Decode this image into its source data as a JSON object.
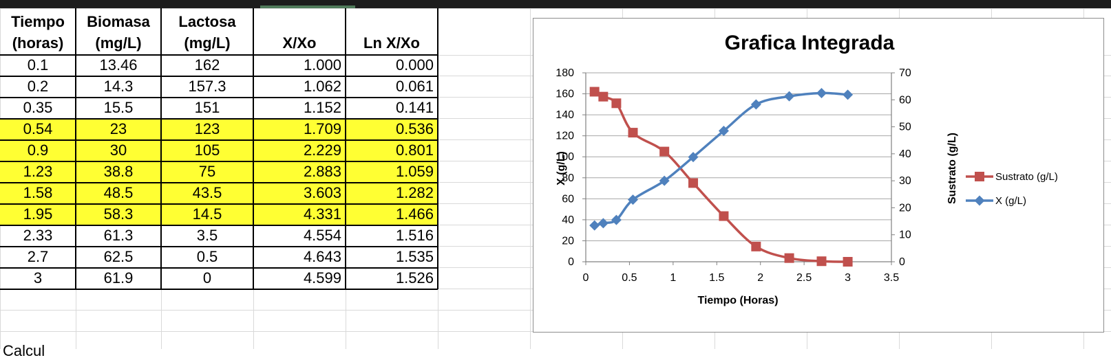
{
  "spreadsheet": {
    "headers": [
      [
        "Tiempo",
        "(horas)"
      ],
      [
        "Biomasa",
        "(mg/L)"
      ],
      [
        "Lactosa",
        "(mg/L)"
      ],
      [
        "X/Xo"
      ],
      [
        "Ln X/Xo"
      ]
    ],
    "rows": [
      {
        "cells": [
          "0.1",
          "13.46",
          "162",
          "1.000",
          "0.000"
        ],
        "highlight": false
      },
      {
        "cells": [
          "0.2",
          "14.3",
          "157.3",
          "1.062",
          "0.061"
        ],
        "highlight": false
      },
      {
        "cells": [
          "0.35",
          "15.5",
          "151",
          "1.152",
          "0.141"
        ],
        "highlight": false
      },
      {
        "cells": [
          "0.54",
          "23",
          "123",
          "1.709",
          "0.536"
        ],
        "highlight": true
      },
      {
        "cells": [
          "0.9",
          "30",
          "105",
          "2.229",
          "0.801"
        ],
        "highlight": true
      },
      {
        "cells": [
          "1.23",
          "38.8",
          "75",
          "2.883",
          "1.059"
        ],
        "highlight": true
      },
      {
        "cells": [
          "1.58",
          "48.5",
          "43.5",
          "3.603",
          "1.282"
        ],
        "highlight": true
      },
      {
        "cells": [
          "1.95",
          "58.3",
          "14.5",
          "4.331",
          "1.466"
        ],
        "highlight": true
      },
      {
        "cells": [
          "2.33",
          "61.3",
          "3.5",
          "4.554",
          "1.516"
        ],
        "highlight": false
      },
      {
        "cells": [
          "2.7",
          "62.5",
          "0.5",
          "4.643",
          "1.535"
        ],
        "highlight": false
      },
      {
        "cells": [
          "3",
          "61.9",
          "0",
          "4.599",
          "1.526"
        ],
        "highlight": false
      }
    ],
    "highlight_color": "#ffff33",
    "gridline_color": "#d9d9d9",
    "cutoff_text": "Calcul"
  },
  "chart_data": {
    "type": "line",
    "title": "Grafica Integrada",
    "xlabel": "Tiempo (Horas)",
    "ylabel_left": "X (g/L)",
    "ylabel_right": "Sustrato (g/L)",
    "xlim": [
      0,
      3.5
    ],
    "xticks": [
      "0",
      "0.5",
      "1",
      "1.5",
      "2",
      "2.5",
      "3",
      "3.5"
    ],
    "ylim_left": [
      0,
      180
    ],
    "yticks_left": [
      "0",
      "20",
      "40",
      "60",
      "80",
      "100",
      "120",
      "140",
      "160",
      "180"
    ],
    "ylim_right": [
      0,
      70
    ],
    "yticks_right": [
      "0",
      "10",
      "20",
      "30",
      "40",
      "50",
      "60",
      "70"
    ],
    "grid": true,
    "legend_position": "right",
    "series": [
      {
        "name": "Sustrato (g/L)",
        "axis": "left",
        "marker": "square",
        "color": "#c0504d",
        "x": [
          0.1,
          0.2,
          0.35,
          0.54,
          0.9,
          1.23,
          1.58,
          1.95,
          2.33,
          2.7,
          3
        ],
        "y": [
          162,
          157.3,
          151,
          123,
          105,
          75,
          43.5,
          14.5,
          3.5,
          0.5,
          0
        ]
      },
      {
        "name": "X (g/L)",
        "axis": "right",
        "marker": "diamond",
        "color": "#4f81bd",
        "x": [
          0.1,
          0.2,
          0.35,
          0.54,
          0.9,
          1.23,
          1.58,
          1.95,
          2.33,
          2.7,
          3
        ],
        "y": [
          13.46,
          14.3,
          15.5,
          23,
          30,
          38.8,
          48.5,
          58.3,
          61.3,
          62.5,
          61.9
        ]
      }
    ]
  }
}
